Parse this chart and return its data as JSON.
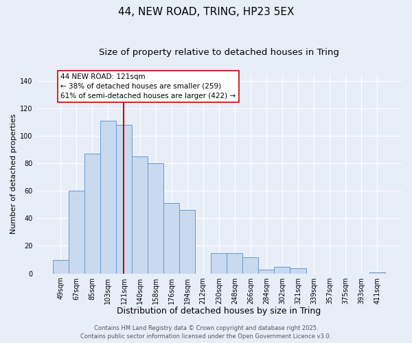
{
  "title": "44, NEW ROAD, TRING, HP23 5EX",
  "subtitle": "Size of property relative to detached houses in Tring",
  "xlabel": "Distribution of detached houses by size in Tring",
  "ylabel": "Number of detached properties",
  "bar_labels": [
    "49sqm",
    "67sqm",
    "85sqm",
    "103sqm",
    "121sqm",
    "140sqm",
    "158sqm",
    "176sqm",
    "194sqm",
    "212sqm",
    "230sqm",
    "248sqm",
    "266sqm",
    "284sqm",
    "302sqm",
    "321sqm",
    "339sqm",
    "357sqm",
    "375sqm",
    "393sqm",
    "411sqm"
  ],
  "bar_values": [
    10,
    60,
    87,
    111,
    108,
    85,
    80,
    51,
    46,
    0,
    15,
    15,
    12,
    3,
    5,
    4,
    0,
    0,
    0,
    0,
    1
  ],
  "bar_color": "#c8d9f0",
  "bar_edge_color": "#6699cc",
  "vline_x": 4,
  "vline_color": "#cc0000",
  "annotation_title": "44 NEW ROAD: 121sqm",
  "annotation_line1": "← 38% of detached houses are smaller (259)",
  "annotation_line2": "61% of semi-detached houses are larger (422) →",
  "annotation_box_color": "#ffffff",
  "annotation_box_edge": "#cc0000",
  "ylim": [
    0,
    145
  ],
  "yticks": [
    0,
    20,
    40,
    60,
    80,
    100,
    120,
    140
  ],
  "footer1": "Contains HM Land Registry data © Crown copyright and database right 2025.",
  "footer2": "Contains public sector information licensed under the Open Government Licence v3.0.",
  "bg_color": "#e8eef8",
  "grid_color": "#ffffff",
  "title_fontsize": 11,
  "subtitle_fontsize": 9.5,
  "xlabel_fontsize": 9,
  "ylabel_fontsize": 8,
  "tick_fontsize": 7,
  "footer_fontsize": 6,
  "ann_fontsize": 7.5
}
